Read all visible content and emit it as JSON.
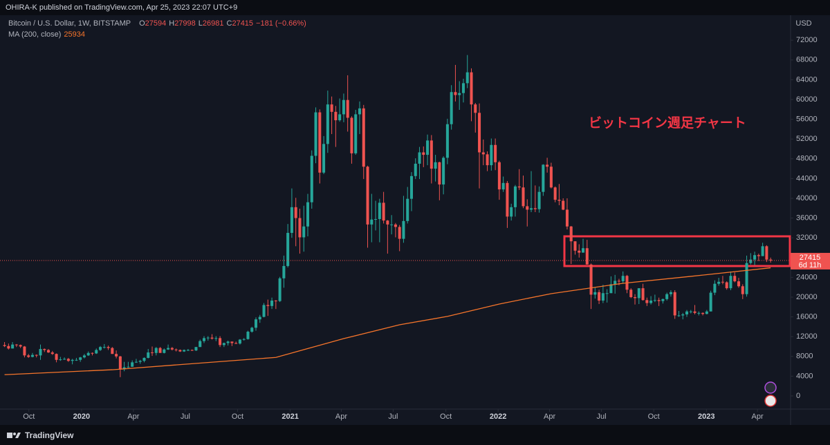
{
  "header": {
    "publisher": "OHIRA-K published on TradingView.com, Apr 25, 2023 22:07 UTC+9"
  },
  "chart_data": {
    "type": "candlestick",
    "title": "Bitcoin / U.S. Dollar, 1W, BITSTAMP",
    "ohlc_labels": [
      "O",
      "H",
      "L",
      "C"
    ],
    "change": "−181 (−0.66%)",
    "annotation": "ビットコイン週足チャート",
    "currency": "USD",
    "countdown": "6d 11h",
    "up_color": "#26a69a",
    "down_color": "#ef5350",
    "grid": false,
    "xlim": [
      -1.14,
      197.0
    ],
    "ylim": [
      -2660,
      77060
    ],
    "xticks": [
      {
        "value": 6.1,
        "label": "Oct"
      },
      {
        "value": 19.3,
        "label": "2020"
      },
      {
        "value": 32.3,
        "label": "Apr"
      },
      {
        "value": 45.3,
        "label": "Jul"
      },
      {
        "value": 58.4,
        "label": "Oct"
      },
      {
        "value": 71.6,
        "label": "2021"
      },
      {
        "value": 84.4,
        "label": "Apr"
      },
      {
        "value": 97.4,
        "label": "Jul"
      },
      {
        "value": 110.6,
        "label": "Oct"
      },
      {
        "value": 123.7,
        "label": "2022"
      },
      {
        "value": 136.6,
        "label": "Apr"
      },
      {
        "value": 149.6,
        "label": "Jul"
      },
      {
        "value": 162.7,
        "label": "Oct"
      },
      {
        "value": 175.9,
        "label": "2023"
      },
      {
        "value": 188.7,
        "label": "Apr"
      }
    ],
    "yticks": [
      0,
      4000,
      8000,
      12000,
      16000,
      20000,
      24000,
      28000,
      32000,
      36000,
      40000,
      44000,
      48000,
      52000,
      56000,
      60000,
      64000,
      68000,
      72000
    ],
    "candles": [
      [
        10300,
        10900,
        9900,
        10100
      ],
      [
        10100,
        10600,
        9400,
        9600
      ],
      [
        9600,
        10900,
        9600,
        10400
      ],
      [
        10400,
        10500,
        9900,
        10300
      ],
      [
        10300,
        10400,
        9700,
        10000
      ],
      [
        10000,
        10100,
        7800,
        8200
      ],
      [
        8200,
        8500,
        7700,
        7900
      ],
      [
        7900,
        8700,
        7800,
        8300
      ],
      [
        8300,
        8400,
        7800,
        8200
      ],
      [
        8200,
        10400,
        7300,
        9500
      ],
      [
        9500,
        9600,
        8900,
        9300
      ],
      [
        9300,
        9500,
        8700,
        8800
      ],
      [
        8800,
        9100,
        8300,
        8500
      ],
      [
        8500,
        8600,
        6800,
        7300
      ],
      [
        7300,
        7900,
        7100,
        7400
      ],
      [
        7400,
        7800,
        7300,
        7500
      ],
      [
        7500,
        7700,
        6900,
        7100
      ],
      [
        7100,
        7500,
        6400,
        7300
      ],
      [
        7300,
        7700,
        7100,
        7300
      ],
      [
        7300,
        7900,
        6900,
        7800
      ],
      [
        7800,
        8500,
        7600,
        8200
      ],
      [
        8200,
        9000,
        8100,
        8700
      ],
      [
        8700,
        8800,
        8200,
        8600
      ],
      [
        8600,
        9600,
        8500,
        9300
      ],
      [
        9300,
        10100,
        9100,
        9900
      ],
      [
        9900,
        10500,
        9600,
        9900
      ],
      [
        9900,
        10200,
        9300,
        9700
      ],
      [
        9700,
        9900,
        8500,
        8500
      ],
      [
        8500,
        9200,
        7600,
        8000
      ],
      [
        8000,
        8100,
        3800,
        5400
      ],
      [
        5400,
        6900,
        5000,
        5800
      ],
      [
        5800,
        6900,
        5700,
        5900
      ],
      [
        5900,
        7200,
        5900,
        6800
      ],
      [
        6800,
        7500,
        6700,
        6900
      ],
      [
        6900,
        7300,
        6500,
        7100
      ],
      [
        7100,
        7800,
        6800,
        7700
      ],
      [
        7700,
        9500,
        7600,
        8800
      ],
      [
        8800,
        10000,
        8100,
        8700
      ],
      [
        8700,
        9900,
        8200,
        9700
      ],
      [
        9700,
        9900,
        8800,
        8700
      ],
      [
        8700,
        9600,
        8600,
        9400
      ],
      [
        9400,
        10400,
        9300,
        9700
      ],
      [
        9700,
        9900,
        9200,
        9400
      ],
      [
        9400,
        9600,
        9000,
        9300
      ],
      [
        9300,
        9400,
        8900,
        9000
      ],
      [
        9000,
        9400,
        8900,
        9300
      ],
      [
        9300,
        9500,
        9100,
        9300
      ],
      [
        9300,
        9400,
        9100,
        9200
      ],
      [
        9200,
        9900,
        9100,
        9900
      ],
      [
        9900,
        11400,
        9900,
        11100
      ],
      [
        11100,
        12100,
        10700,
        11700
      ],
      [
        11700,
        12100,
        11200,
        11800
      ],
      [
        11800,
        12500,
        11400,
        11600
      ],
      [
        11600,
        12100,
        11100,
        11700
      ],
      [
        11700,
        12100,
        9900,
        10300
      ],
      [
        10300,
        10800,
        9900,
        10700
      ],
      [
        10700,
        11200,
        10200,
        11000
      ],
      [
        11000,
        11000,
        10100,
        10700
      ],
      [
        10700,
        11000,
        10500,
        10600
      ],
      [
        10600,
        11500,
        10400,
        11400
      ],
      [
        11400,
        11700,
        11200,
        11500
      ],
      [
        11500,
        13200,
        11400,
        13000
      ],
      [
        13000,
        14000,
        12800,
        13800
      ],
      [
        13800,
        15900,
        13200,
        15500
      ],
      [
        15500,
        16400,
        14800,
        16000
      ],
      [
        16000,
        18800,
        15900,
        18400
      ],
      [
        18400,
        19500,
        16200,
        18200
      ],
      [
        18200,
        19900,
        17600,
        19300
      ],
      [
        19300,
        19400,
        17600,
        19200
      ],
      [
        19200,
        24100,
        19000,
        23800
      ],
      [
        23800,
        28400,
        21900,
        26300
      ],
      [
        26300,
        34800,
        26000,
        33000
      ],
      [
        33000,
        42000,
        32000,
        38200
      ],
      [
        38200,
        40100,
        30300,
        36000
      ],
      [
        36000,
        37900,
        28800,
        32100
      ],
      [
        32100,
        38500,
        29200,
        34300
      ],
      [
        34300,
        40900,
        32300,
        39200
      ],
      [
        39200,
        49700,
        37900,
        48600
      ],
      [
        48600,
        58400,
        47100,
        57400
      ],
      [
        57400,
        58000,
        43000,
        45200
      ],
      [
        45200,
        52600,
        44900,
        51000
      ],
      [
        51000,
        61800,
        49200,
        59000
      ],
      [
        59000,
        60600,
        53000,
        57500
      ],
      [
        57500,
        58700,
        50400,
        55800
      ],
      [
        55800,
        60200,
        55500,
        57000
      ],
      [
        57000,
        61200,
        55400,
        59900
      ],
      [
        59900,
        64900,
        53500,
        56300
      ],
      [
        56300,
        56600,
        47000,
        49100
      ],
      [
        49100,
        57900,
        48800,
        57000
      ],
      [
        57000,
        59600,
        53000,
        58200
      ],
      [
        58200,
        58900,
        43900,
        46400
      ],
      [
        46400,
        46600,
        30000,
        34700
      ],
      [
        34700,
        40900,
        31100,
        35700
      ],
      [
        35700,
        39500,
        33500,
        35800
      ],
      [
        35800,
        39900,
        31100,
        39100
      ],
      [
        39100,
        41300,
        34900,
        35500
      ],
      [
        35500,
        35600,
        28800,
        34700
      ],
      [
        34700,
        36600,
        32700,
        34700
      ],
      [
        34700,
        35000,
        32100,
        34200
      ],
      [
        34200,
        34600,
        29300,
        31800
      ],
      [
        31800,
        40500,
        31000,
        35400
      ],
      [
        35400,
        42300,
        34900,
        39900
      ],
      [
        39900,
        45300,
        37400,
        44500
      ],
      [
        44500,
        48100,
        43900,
        47000
      ],
      [
        47000,
        50400,
        43900,
        49300
      ],
      [
        49300,
        50500,
        46300,
        48800
      ],
      [
        48800,
        52900,
        46700,
        51700
      ],
      [
        51700,
        52800,
        43000,
        46000
      ],
      [
        46000,
        48800,
        43400,
        47300
      ],
      [
        47300,
        47400,
        39600,
        42800
      ],
      [
        42800,
        48500,
        40800,
        48200
      ],
      [
        48200,
        56100,
        46900,
        55000
      ],
      [
        55000,
        62900,
        53900,
        61500
      ],
      [
        61500,
        67000,
        59600,
        60900
      ],
      [
        60900,
        63700,
        57900,
        61300
      ],
      [
        61300,
        64200,
        59400,
        63300
      ],
      [
        63300,
        69000,
        62300,
        65500
      ],
      [
        65500,
        66300,
        55600,
        59000
      ],
      [
        59000,
        59300,
        53300,
        57300
      ],
      [
        57300,
        59200,
        42000,
        49300
      ],
      [
        49300,
        51900,
        46700,
        48900
      ],
      [
        48900,
        49500,
        45500,
        46700
      ],
      [
        46700,
        52100,
        45600,
        50800
      ],
      [
        50800,
        52100,
        45700,
        47300
      ],
      [
        47300,
        47600,
        39700,
        41800
      ],
      [
        41800,
        44400,
        41300,
        43100
      ],
      [
        43100,
        43500,
        34000,
        36300
      ],
      [
        36300,
        38900,
        35500,
        38200
      ],
      [
        38200,
        42700,
        36300,
        42400
      ],
      [
        42400,
        45900,
        41700,
        42200
      ],
      [
        42200,
        44600,
        38000,
        38400
      ],
      [
        38400,
        39800,
        34300,
        37700
      ],
      [
        37700,
        45500,
        37200,
        38000
      ],
      [
        38000,
        42600,
        37200,
        37800
      ],
      [
        37800,
        42400,
        37100,
        41300
      ],
      [
        41300,
        46900,
        40500,
        46800
      ],
      [
        46800,
        48200,
        45200,
        46400
      ],
      [
        46400,
        47200,
        42000,
        42200
      ],
      [
        42200,
        42400,
        39200,
        39700
      ],
      [
        39700,
        42900,
        38600,
        39500
      ],
      [
        39500,
        40000,
        37600,
        37700
      ],
      [
        37700,
        40000,
        33700,
        34300
      ],
      [
        34300,
        34400,
        26700,
        31300
      ],
      [
        31300,
        31300,
        28600,
        29400
      ],
      [
        29400,
        30700,
        28000,
        29000
      ],
      [
        29000,
        31800,
        29300,
        29900
      ],
      [
        29900,
        31600,
        26600,
        26600
      ],
      [
        26600,
        26800,
        17600,
        20500
      ],
      [
        20500,
        21900,
        19700,
        21000
      ],
      [
        21000,
        21500,
        18600,
        19300
      ],
      [
        19300,
        22500,
        18800,
        20800
      ],
      [
        20800,
        21600,
        18900,
        20800
      ],
      [
        20800,
        24200,
        20800,
        22600
      ],
      [
        22600,
        24500,
        20700,
        23300
      ],
      [
        23300,
        23700,
        22400,
        23200
      ],
      [
        23200,
        25200,
        22700,
        24300
      ],
      [
        24300,
        24500,
        20800,
        21500
      ],
      [
        21500,
        21800,
        19800,
        20000
      ],
      [
        20000,
        20600,
        18500,
        19800
      ],
      [
        19800,
        21800,
        18600,
        21800
      ],
      [
        21800,
        22700,
        19300,
        19400
      ],
      [
        19400,
        19900,
        18200,
        18800
      ],
      [
        18800,
        20200,
        18500,
        19300
      ],
      [
        19300,
        20500,
        19000,
        19400
      ],
      [
        19400,
        19900,
        18200,
        19200
      ],
      [
        19200,
        19700,
        18700,
        19600
      ],
      [
        19600,
        20900,
        19300,
        20600
      ],
      [
        20600,
        21400,
        20100,
        21000
      ],
      [
        21000,
        21400,
        15600,
        16300
      ],
      [
        16300,
        17200,
        16000,
        16300
      ],
      [
        16300,
        16800,
        15500,
        16500
      ],
      [
        16500,
        17400,
        16000,
        17100
      ],
      [
        17100,
        17400,
        16700,
        17100
      ],
      [
        17100,
        18400,
        16500,
        16800
      ],
      [
        16800,
        17100,
        16300,
        16800
      ],
      [
        16800,
        16900,
        16300,
        16600
      ],
      [
        16600,
        17400,
        16500,
        17100
      ],
      [
        17100,
        21300,
        17100,
        20900
      ],
      [
        20900,
        23400,
        20400,
        22700
      ],
      [
        22700,
        23900,
        22300,
        23100
      ],
      [
        23100,
        24300,
        22600,
        23000
      ],
      [
        23000,
        23200,
        21500,
        21800
      ],
      [
        21800,
        25200,
        21400,
        24300
      ],
      [
        24300,
        25000,
        23000,
        23200
      ],
      [
        23200,
        23900,
        21900,
        22200
      ],
      [
        22200,
        22600,
        19600,
        20600
      ],
      [
        20600,
        28400,
        20100,
        26900
      ],
      [
        26900,
        28900,
        26600,
        27600
      ],
      [
        27600,
        29200,
        26500,
        28500
      ],
      [
        28500,
        28800,
        27300,
        28300
      ],
      [
        28300,
        31000,
        28300,
        30300
      ],
      [
        30300,
        30500,
        27100,
        27600
      ],
      [
        27594,
        27998,
        26981,
        27415
      ]
    ],
    "ma": {
      "name": "MA (200, close)",
      "color": "#f7752b",
      "x": [
        0,
        27,
        68,
        85,
        99,
        111,
        124,
        137,
        155,
        172,
        192
      ],
      "values": [
        4300,
        5300,
        7800,
        11600,
        14400,
        16100,
        18600,
        20700,
        22800,
        24200,
        25934
      ]
    }
  },
  "footer": {
    "brand": "TradingView"
  }
}
